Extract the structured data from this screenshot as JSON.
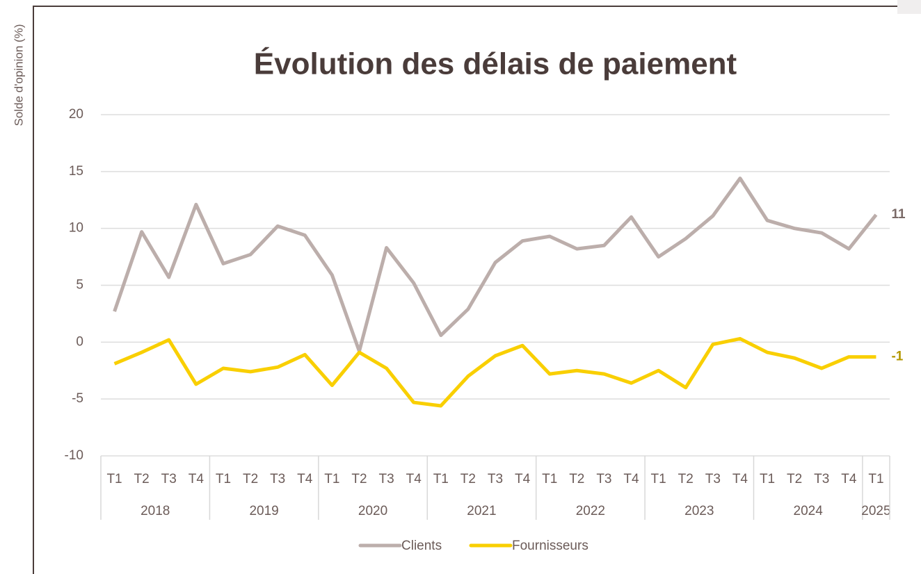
{
  "chart_data": {
    "type": "line",
    "title": "Évolution des délais de paiement",
    "y_label": "Solde d'opinion (%)",
    "categories": [
      "T1",
      "T2",
      "T3",
      "T4",
      "T1",
      "T2",
      "T3",
      "T4",
      "T1",
      "T2",
      "T3",
      "T4",
      "T1",
      "T2",
      "T3",
      "T4",
      "T1",
      "T2",
      "T3",
      "T4",
      "T1",
      "T2",
      "T3",
      "T4",
      "T1",
      "T2",
      "T3",
      "T4",
      "T1"
    ],
    "groups": [
      {
        "label": "2018",
        "count": 4
      },
      {
        "label": "2019",
        "count": 4
      },
      {
        "label": "2020",
        "count": 4
      },
      {
        "label": "2021",
        "count": 4
      },
      {
        "label": "2022",
        "count": 4
      },
      {
        "label": "2023",
        "count": 4
      },
      {
        "label": "2024",
        "count": 4
      },
      {
        "label": "2025",
        "count": 1
      }
    ],
    "series": [
      {
        "name": "Clients",
        "color": "#bcaeab",
        "label_color": "#7a6a67",
        "values": [
          2.7,
          9.7,
          5.7,
          12.1,
          6.9,
          7.7,
          10.2,
          9.4,
          5.9,
          -0.8,
          8.3,
          5.2,
          0.6,
          2.9,
          7.0,
          8.9,
          9.3,
          8.2,
          8.5,
          11.0,
          7.5,
          9.1,
          11.1,
          14.4,
          10.7,
          10.0,
          9.6,
          8.2,
          11.2
        ],
        "value_labels": [
          null,
          null,
          null,
          null,
          null,
          null,
          null,
          null,
          null,
          null,
          null,
          null,
          null,
          null,
          null,
          null,
          null,
          null,
          null,
          null,
          null,
          null,
          null,
          null,
          null,
          null,
          null,
          null,
          "11"
        ]
      },
      {
        "name": "Fournisseurs",
        "color": "#f9cf00",
        "label_color": "#b39700",
        "values": [
          -1.9,
          -0.9,
          0.2,
          -3.7,
          -2.3,
          -2.6,
          -2.2,
          -1.1,
          -3.8,
          -0.9,
          -2.3,
          -5.3,
          -5.6,
          -3.0,
          -1.2,
          -0.3,
          -2.8,
          -2.5,
          -2.8,
          -3.6,
          -2.5,
          -4.0,
          -0.2,
          0.3,
          -0.9,
          -1.4,
          -2.3,
          -1.3,
          -1.3
        ],
        "value_labels": [
          null,
          null,
          null,
          null,
          null,
          null,
          null,
          null,
          null,
          null,
          null,
          null,
          null,
          null,
          null,
          null,
          null,
          null,
          null,
          null,
          null,
          null,
          null,
          null,
          null,
          null,
          null,
          null,
          "-1"
        ]
      }
    ],
    "ylim": [
      -10,
      20
    ],
    "yticks": [
      -10,
      -5,
      0,
      5,
      10,
      15,
      20
    ],
    "grid": true,
    "legend": "bottom"
  }
}
